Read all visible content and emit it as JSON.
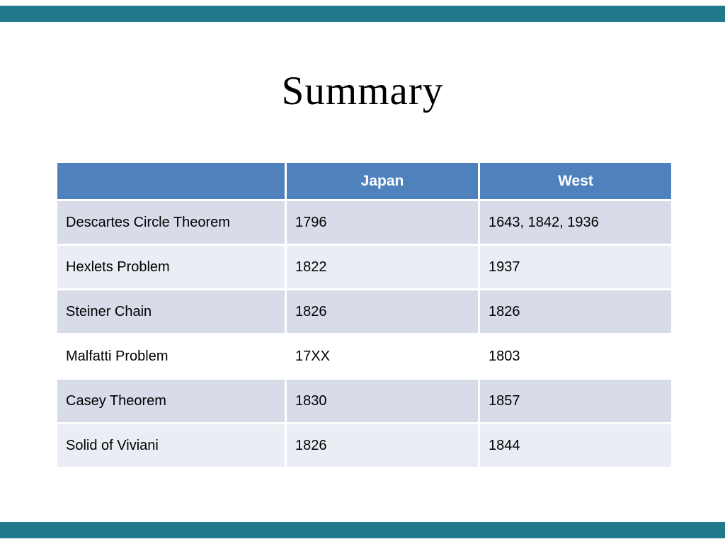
{
  "slide": {
    "title": "Summary"
  },
  "colors": {
    "accent_bar": "#20798c",
    "table_header_bg": "#4f81bd",
    "header_text": "#ffffff",
    "row_band_dark": "#d8dce9",
    "row_band_light": "#eaedf4",
    "row_plain": "#ffffff",
    "body_text": "#000000"
  },
  "table": {
    "columns": [
      "",
      "Japan",
      "West"
    ],
    "rows": [
      {
        "label": "Descartes Circle Theorem",
        "japan": "1796",
        "west": "1643, 1842, 1936"
      },
      {
        "label": "Hexlets Problem",
        "japan": "1822",
        "west": "1937"
      },
      {
        "label": "Steiner Chain",
        "japan": "1826",
        "west": "1826"
      },
      {
        "label": "Malfatti Problem",
        "japan": "17XX",
        "west": "1803"
      },
      {
        "label": "Casey Theorem",
        "japan": "1830",
        "west": "1857"
      },
      {
        "label": "Solid of Viviani",
        "japan": "1826",
        "west": "1844"
      }
    ]
  }
}
